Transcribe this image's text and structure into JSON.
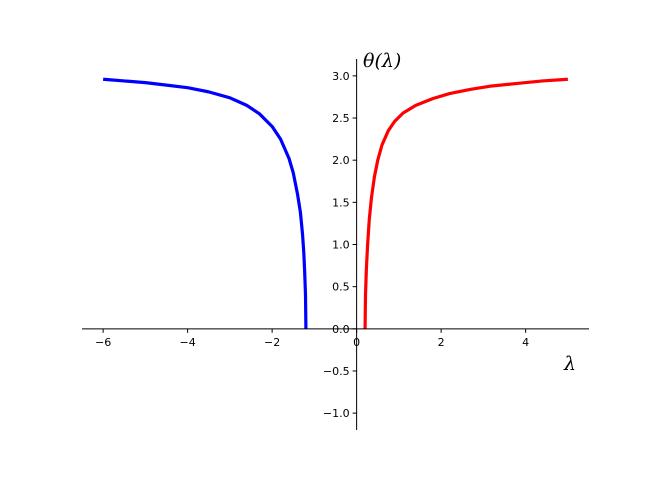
{
  "chart_data": {
    "type": "line",
    "title": "",
    "xlabel": "λ",
    "ylabel": "θ(λ)",
    "xlim": [
      -6.5,
      5.5
    ],
    "ylim": [
      -1.2,
      3.2
    ],
    "xticks": [
      -6,
      -4,
      -2,
      0,
      2,
      4
    ],
    "xtick_labels": [
      "−6",
      "−4",
      "−2",
      "0",
      "2",
      "4"
    ],
    "yticks": [
      -1.0,
      -0.5,
      0.0,
      0.5,
      1.0,
      1.5,
      2.0,
      2.5,
      3.0
    ],
    "ytick_labels": [
      "−1.0",
      "−0.5",
      "0.0",
      "0.5",
      "1.0",
      "1.5",
      "2.0",
      "2.5",
      "3.0"
    ],
    "grid": false,
    "spines": "centered",
    "series": [
      {
        "color": "#0000ff",
        "x": [
          -6.0,
          -5.5,
          -5.0,
          -4.5,
          -4.0,
          -3.5,
          -3.0,
          -2.6,
          -2.3,
          -2.0,
          -1.8,
          -1.6,
          -1.5,
          -1.4,
          -1.33,
          -1.28,
          -1.25,
          -1.23,
          -1.21,
          -1.2
        ],
        "y": [
          2.96,
          2.94,
          2.92,
          2.89,
          2.86,
          2.81,
          2.74,
          2.65,
          2.55,
          2.4,
          2.25,
          2.02,
          1.85,
          1.6,
          1.38,
          1.12,
          0.9,
          0.68,
          0.4,
          0.0
        ]
      },
      {
        "color": "#ff0000",
        "x": [
          0.2,
          0.21,
          0.23,
          0.26,
          0.3,
          0.35,
          0.42,
          0.5,
          0.6,
          0.75,
          0.9,
          1.1,
          1.4,
          1.8,
          2.2,
          2.7,
          3.2,
          3.8,
          4.4,
          5.0
        ],
        "y": [
          0.0,
          0.4,
          0.7,
          1.0,
          1.3,
          1.55,
          1.8,
          2.0,
          2.18,
          2.35,
          2.46,
          2.56,
          2.65,
          2.73,
          2.79,
          2.84,
          2.88,
          2.91,
          2.94,
          2.96
        ]
      }
    ]
  }
}
